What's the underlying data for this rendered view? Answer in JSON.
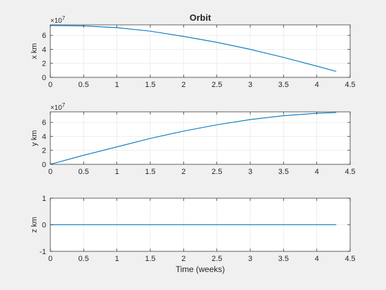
{
  "chart_data": [
    {
      "type": "line",
      "title": "Orbit",
      "xlabel": "",
      "ylabel": "x km",
      "exponent_label": "×10",
      "exponent_power": "7",
      "xlim": [
        0,
        4.5
      ],
      "ylim": [
        0,
        75000000
      ],
      "xticks": [
        0,
        0.5,
        1,
        1.5,
        2,
        2.5,
        3,
        3.5,
        4,
        4.5
      ],
      "xtick_labels": [
        "0",
        "0.5",
        "1",
        "1.5",
        "2",
        "2.5",
        "3",
        "3.5",
        "4",
        "4.5"
      ],
      "yticks": [
        0,
        20000000,
        40000000,
        60000000
      ],
      "ytick_labels": [
        "0",
        "2",
        "4",
        "6"
      ],
      "grid": true,
      "series": [
        {
          "color": "#0072bd",
          "x": [
            0,
            0.5,
            1,
            1.5,
            2,
            2.5,
            3,
            3.5,
            4,
            4.29
          ],
          "y": [
            74000000,
            73500000,
            71000000,
            66000000,
            58500000,
            50000000,
            40000000,
            28500000,
            16000000,
            8500000
          ]
        }
      ]
    },
    {
      "type": "line",
      "title": "",
      "xlabel": "",
      "ylabel": "y km",
      "exponent_label": "×10",
      "exponent_power": "7",
      "xlim": [
        0,
        4.5
      ],
      "ylim": [
        0,
        75000000
      ],
      "xticks": [
        0,
        0.5,
        1,
        1.5,
        2,
        2.5,
        3,
        3.5,
        4,
        4.5
      ],
      "xtick_labels": [
        "0",
        "0.5",
        "1",
        "1.5",
        "2",
        "2.5",
        "3",
        "3.5",
        "4",
        "4.5"
      ],
      "yticks": [
        0,
        20000000,
        40000000,
        60000000
      ],
      "ytick_labels": [
        "0",
        "2",
        "4",
        "6"
      ],
      "grid": true,
      "series": [
        {
          "color": "#0072bd",
          "x": [
            0,
            0.5,
            1,
            1.5,
            2,
            2.5,
            3,
            3.5,
            4,
            4.29
          ],
          "y": [
            0,
            13000000,
            25000000,
            37000000,
            47500000,
            56500000,
            64000000,
            69500000,
            73000000,
            74000000
          ]
        }
      ]
    },
    {
      "type": "line",
      "title": "",
      "xlabel": "Time (weeks)",
      "ylabel": "z km",
      "exponent_label": "",
      "exponent_power": "",
      "xlim": [
        0,
        4.5
      ],
      "ylim": [
        -1,
        1
      ],
      "xticks": [
        0,
        0.5,
        1,
        1.5,
        2,
        2.5,
        3,
        3.5,
        4,
        4.5
      ],
      "xtick_labels": [
        "0",
        "0.5",
        "1",
        "1.5",
        "2",
        "2.5",
        "3",
        "3.5",
        "4",
        "4.5"
      ],
      "yticks": [
        -1,
        0,
        1
      ],
      "ytick_labels": [
        "-1",
        "0",
        "1"
      ],
      "grid": true,
      "series": [
        {
          "color": "#0072bd",
          "x": [
            0,
            4.29
          ],
          "y": [
            0,
            0
          ]
        }
      ]
    }
  ]
}
